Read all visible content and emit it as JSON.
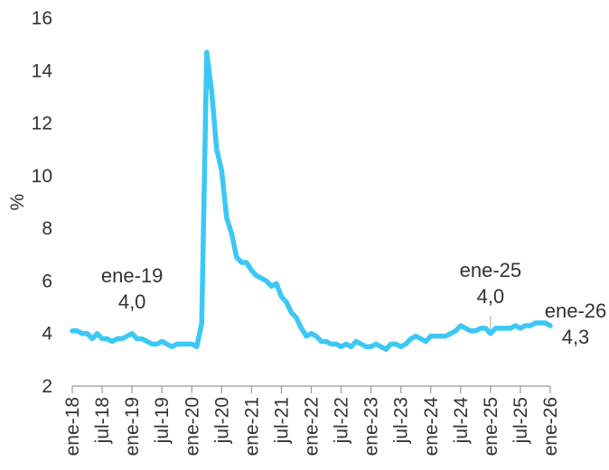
{
  "chart_data": {
    "type": "line",
    "title": "",
    "xlabel": "",
    "ylabel": "%",
    "ylim": [
      2,
      16
    ],
    "yticks": [
      2,
      4,
      6,
      8,
      10,
      12,
      14,
      16
    ],
    "grid": false,
    "legend": "none",
    "x_tick_labels": [
      "ene-18",
      "jul-18",
      "ene-19",
      "jul-19",
      "ene-20",
      "jul-20",
      "ene-21",
      "jul-21",
      "ene-22",
      "jul-22",
      "ene-23",
      "jul-23",
      "ene-24",
      "jul-24",
      "ene-25",
      "jul-25",
      "ene-26"
    ],
    "series": [
      {
        "color": "#3cc8f4",
        "x": [
          "ene-18",
          "feb-18",
          "mar-18",
          "abr-18",
          "may-18",
          "jun-18",
          "jul-18",
          "ago-18",
          "sep-18",
          "oct-18",
          "nov-18",
          "dic-18",
          "ene-19",
          "feb-19",
          "mar-19",
          "abr-19",
          "may-19",
          "jun-19",
          "jul-19",
          "ago-19",
          "sep-19",
          "oct-19",
          "nov-19",
          "dic-19",
          "ene-20",
          "feb-20",
          "mar-20",
          "abr-20",
          "may-20",
          "jun-20",
          "jul-20",
          "ago-20",
          "sep-20",
          "oct-20",
          "nov-20",
          "dic-20",
          "ene-21",
          "feb-21",
          "mar-21",
          "abr-21",
          "may-21",
          "jun-21",
          "jul-21",
          "ago-21",
          "sep-21",
          "oct-21",
          "nov-21",
          "dic-21",
          "ene-22",
          "feb-22",
          "mar-22",
          "abr-22",
          "may-22",
          "jun-22",
          "jul-22",
          "ago-22",
          "sep-22",
          "oct-22",
          "nov-22",
          "dic-22",
          "ene-23",
          "feb-23",
          "mar-23",
          "abr-23",
          "may-23",
          "jun-23",
          "jul-23",
          "ago-23",
          "sep-23",
          "oct-23",
          "nov-23",
          "dic-23",
          "ene-24",
          "feb-24",
          "mar-24",
          "abr-24",
          "may-24",
          "jun-24",
          "jul-24",
          "ago-24",
          "sep-24",
          "oct-24",
          "nov-24",
          "dic-24",
          "ene-25",
          "feb-25",
          "mar-25",
          "abr-25",
          "may-25",
          "jun-25",
          "jul-25",
          "ago-25",
          "sep-25",
          "oct-25",
          "nov-25",
          "dic-25",
          "ene-26"
        ],
        "values": [
          4.1,
          4.1,
          4.0,
          4.0,
          3.8,
          4.0,
          3.8,
          3.8,
          3.7,
          3.8,
          3.8,
          3.9,
          4.0,
          3.8,
          3.8,
          3.7,
          3.6,
          3.6,
          3.7,
          3.6,
          3.5,
          3.6,
          3.6,
          3.6,
          3.6,
          3.5,
          4.4,
          14.7,
          13.2,
          11.0,
          10.2,
          8.4,
          7.8,
          6.9,
          6.7,
          6.7,
          6.4,
          6.2,
          6.1,
          6.0,
          5.8,
          5.9,
          5.4,
          5.2,
          4.8,
          4.6,
          4.2,
          3.9,
          4.0,
          3.9,
          3.7,
          3.7,
          3.6,
          3.6,
          3.5,
          3.6,
          3.5,
          3.7,
          3.6,
          3.5,
          3.5,
          3.6,
          3.5,
          3.4,
          3.6,
          3.6,
          3.5,
          3.6,
          3.8,
          3.9,
          3.8,
          3.7,
          3.9,
          3.9,
          3.9,
          3.9,
          4.0,
          4.1,
          4.3,
          4.2,
          4.1,
          4.1,
          4.2,
          4.2,
          4.0,
          4.2,
          4.2,
          4.2,
          4.2,
          4.3,
          4.2,
          4.3,
          4.3,
          4.4,
          4.4,
          4.4,
          4.3
        ]
      }
    ],
    "annotations": [
      {
        "date": "ene-19",
        "value_label": "4,0",
        "value": 4.0
      },
      {
        "date": "ene-25",
        "value_label": "4,0",
        "value": 4.0
      },
      {
        "date": "ene-26",
        "value_label": "4,3",
        "value": 4.3
      }
    ]
  }
}
